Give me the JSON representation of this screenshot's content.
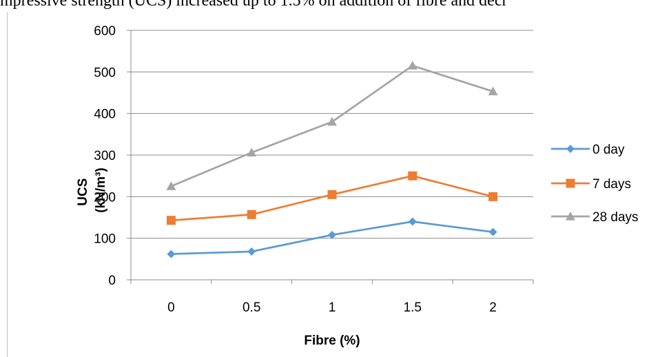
{
  "header": {
    "text": "mpressive strength (UCS) increased up to 1.5% on addition of fibre and decr"
  },
  "chart_data": {
    "type": "line",
    "x": [
      "0",
      "0.5",
      "1",
      "1.5",
      "2"
    ],
    "xlabel": "Fibre (%)",
    "ylabel_lines": [
      "UCS",
      "(kN/m³)"
    ],
    "ylim": [
      0,
      600
    ],
    "yticks": [
      0,
      100,
      200,
      300,
      400,
      500,
      600
    ],
    "grid": true,
    "legend_position": "right",
    "series": [
      {
        "name": "0 day",
        "values": [
          62,
          68,
          108,
          140,
          115
        ],
        "color": "#5b9bd5",
        "marker": "diamond"
      },
      {
        "name": "7 days",
        "values": [
          143,
          157,
          205,
          250,
          200
        ],
        "color": "#ed7d31",
        "marker": "square"
      },
      {
        "name": "28 days",
        "values": [
          225,
          306,
          380,
          515,
          453
        ],
        "color": "#a5a5a5",
        "marker": "triangle"
      }
    ]
  }
}
